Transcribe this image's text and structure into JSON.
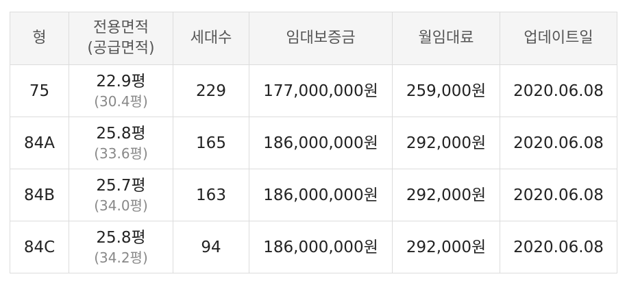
{
  "table": {
    "headers": {
      "type": "형",
      "area_line1": "전용면적",
      "area_line2": "(공급면적)",
      "units": "세대수",
      "deposit": "임대보증금",
      "rent": "월임대료",
      "updated": "업데이트일"
    },
    "rows": [
      {
        "type": "75",
        "exclusive_area": "22.9평",
        "supply_area": "(30.4평)",
        "units": "229",
        "deposit": "177,000,000원",
        "rent": "259,000원",
        "updated": "2020.06.08"
      },
      {
        "type": "84A",
        "exclusive_area": "25.8평",
        "supply_area": "(33.6평)",
        "units": "165",
        "deposit": "186,000,000원",
        "rent": "292,000원",
        "updated": "2020.06.08"
      },
      {
        "type": "84B",
        "exclusive_area": "25.7평",
        "supply_area": "(34.0평)",
        "units": "163",
        "deposit": "186,000,000원",
        "rent": "292,000원",
        "updated": "2020.06.08"
      },
      {
        "type": "84C",
        "exclusive_area": "25.8평",
        "supply_area": "(34.2평)",
        "units": "94",
        "deposit": "186,000,000원",
        "rent": "292,000원",
        "updated": "2020.06.08"
      }
    ]
  }
}
